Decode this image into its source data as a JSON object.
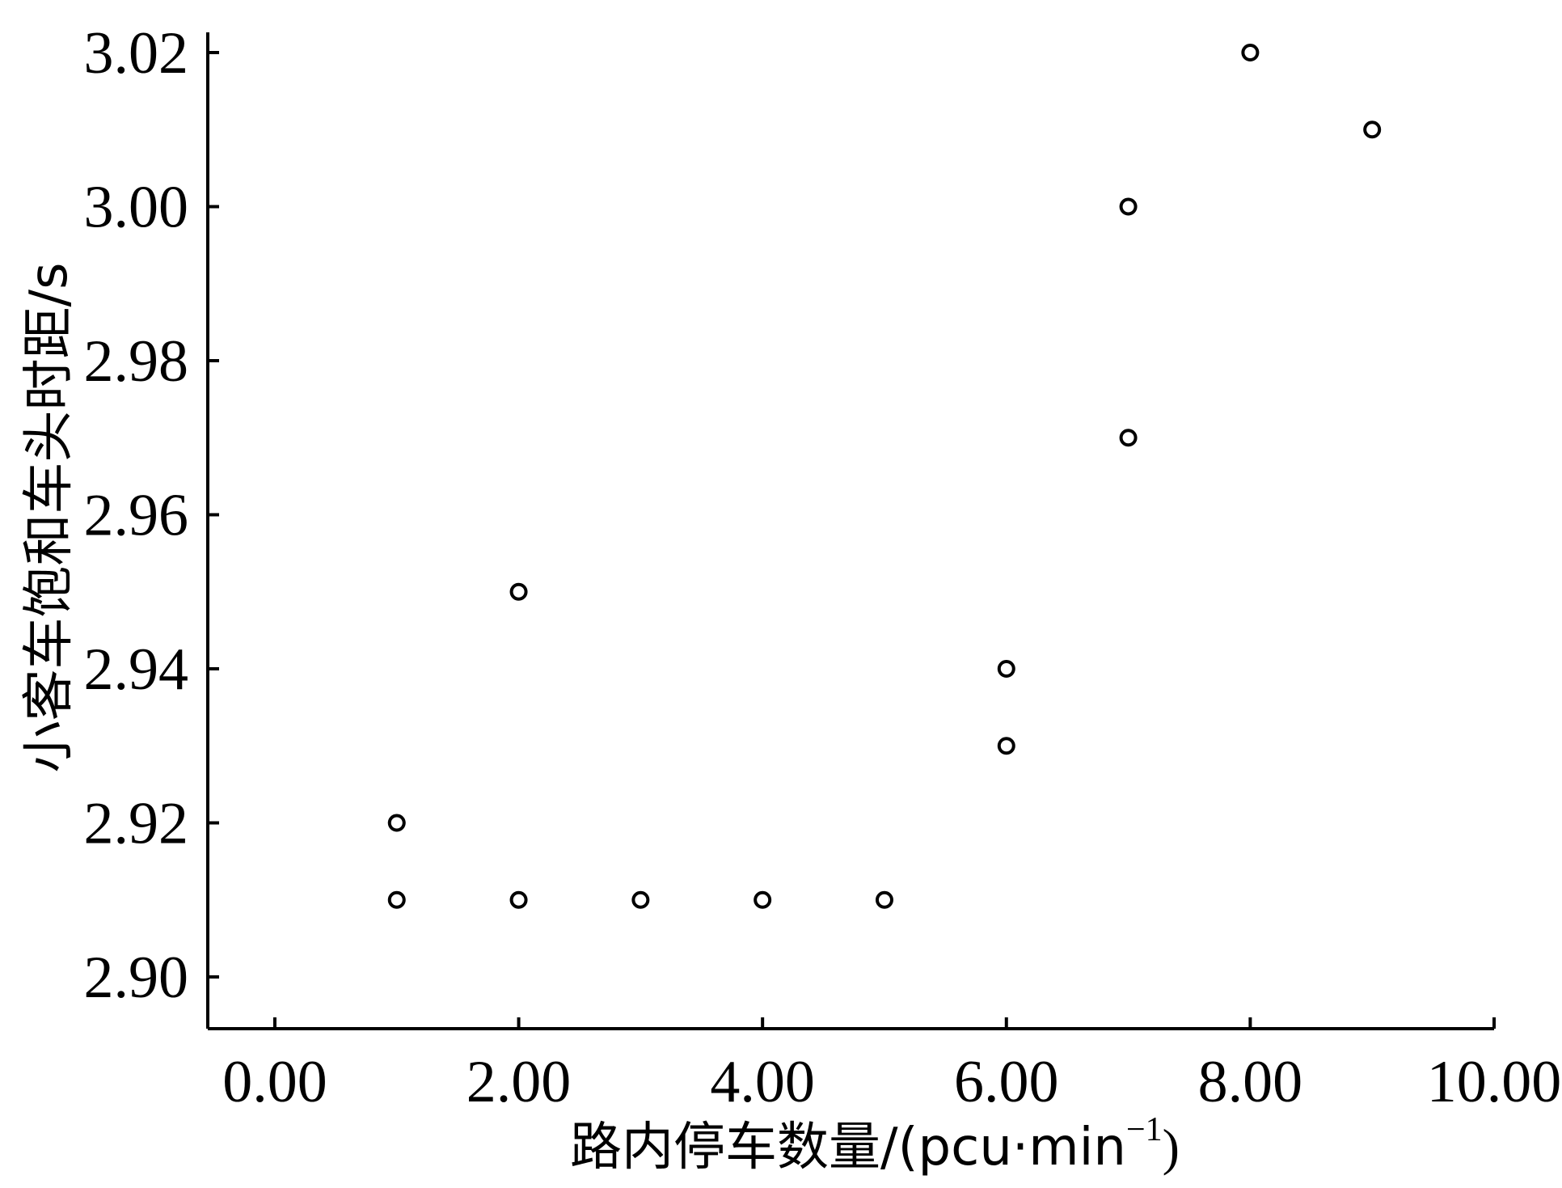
{
  "chart_data": {
    "type": "scatter",
    "xlabel": "路内停车数量/(pcu·min",
    "xlabel_superscript": "−1",
    "xlabel_suffix": ")",
    "ylabel": "小客车饱和车头时距/s",
    "xlim": [
      -0.55,
      10.0
    ],
    "ylim": [
      2.893,
      3.02
    ],
    "x_ticks": [
      0,
      2,
      4,
      6,
      8,
      10
    ],
    "x_tick_labels": [
      "0.00",
      "2.00",
      "4.00",
      "6.00",
      "8.00",
      "10.00"
    ],
    "y_ticks": [
      2.9,
      2.92,
      2.94,
      2.96,
      2.98,
      3.0,
      3.02
    ],
    "y_tick_labels": [
      "2.90",
      "2.92",
      "2.94",
      "2.96",
      "2.98",
      "3.00",
      "3.02"
    ],
    "marker": "open-circle",
    "grid": false,
    "points": [
      {
        "x": 1,
        "y": 2.92
      },
      {
        "x": 1,
        "y": 2.91
      },
      {
        "x": 2,
        "y": 2.95
      },
      {
        "x": 2,
        "y": 2.91
      },
      {
        "x": 3,
        "y": 2.91
      },
      {
        "x": 4,
        "y": 2.91
      },
      {
        "x": 5,
        "y": 2.91
      },
      {
        "x": 6,
        "y": 2.94
      },
      {
        "x": 6,
        "y": 2.93
      },
      {
        "x": 7,
        "y": 3.0
      },
      {
        "x": 7,
        "y": 2.97
      },
      {
        "x": 8,
        "y": 3.02
      },
      {
        "x": 9,
        "y": 3.01
      }
    ]
  }
}
